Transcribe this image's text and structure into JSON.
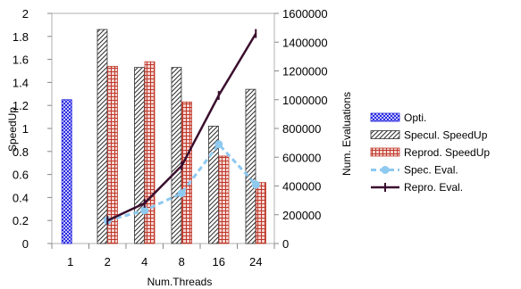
{
  "chart_data": {
    "type": "bar",
    "categories": [
      "1",
      "2",
      "4",
      "8",
      "16",
      "24"
    ],
    "xlabel": "Num.Threads",
    "ylabel": "SpeedUp",
    "y2label": "Num. Evaluations",
    "ylim": [
      0,
      2
    ],
    "yticks": [
      "0",
      "0.2",
      "0.4",
      "0.6",
      "0.8",
      "1",
      "1.2",
      "1.4",
      "1.6",
      "1.8",
      "2"
    ],
    "y2lim": [
      0,
      1600000
    ],
    "y2ticks": [
      "0",
      "200000",
      "400000",
      "600000",
      "800000",
      "1000000",
      "1200000",
      "1400000",
      "1600000"
    ],
    "grid": false,
    "legend_position": "right",
    "series": [
      {
        "name": "Opti.",
        "kind": "bar",
        "axis": "left",
        "pattern": "blue-hatch",
        "color": "#1f1fe0",
        "values": [
          1.25,
          null,
          null,
          null,
          null,
          null
        ]
      },
      {
        "name": "Specul. SpeedUp",
        "kind": "bar",
        "axis": "left",
        "pattern": "diagonal-stripes",
        "color": "#333333",
        "values": [
          null,
          1.86,
          1.53,
          1.53,
          1.02,
          1.34
        ]
      },
      {
        "name": "Reprod. SpeedUp",
        "kind": "bar",
        "axis": "left",
        "pattern": "red-grid",
        "color": "#c0392b",
        "values": [
          null,
          1.54,
          1.58,
          1.23,
          0.76,
          0.53
        ]
      },
      {
        "name": "Spec. Eval.",
        "kind": "line",
        "axis": "right",
        "style": "dashed-circle",
        "color": "#8ec9f0",
        "values": [
          null,
          160000,
          230000,
          350000,
          690000,
          410000
        ]
      },
      {
        "name": "Repro. Eval.",
        "kind": "line",
        "axis": "right",
        "style": "solid-dash-marker",
        "color": "#3a0f2e",
        "values": [
          null,
          160000,
          280000,
          540000,
          1030000,
          1460000
        ]
      }
    ]
  }
}
